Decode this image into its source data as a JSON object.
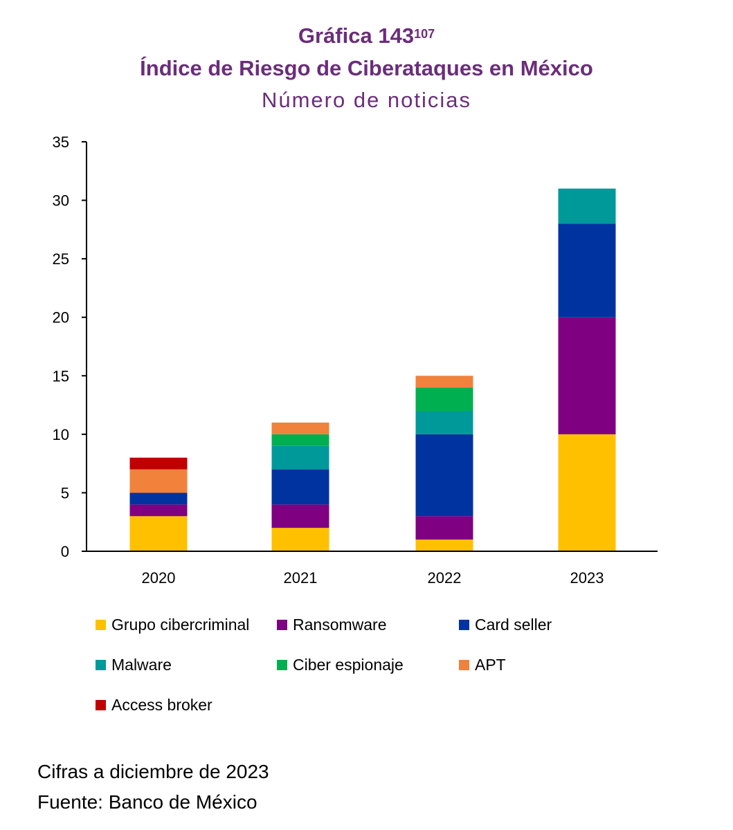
{
  "header": {
    "title_main": "Gráfica 143",
    "title_sup": "107",
    "title_line2": "Índice de Riesgo de Ciberataques en México",
    "subtitle": "Número de noticias"
  },
  "chart_data": {
    "type": "bar",
    "stacked": true,
    "title": "Índice de Riesgo de Ciberataques en México",
    "subtitle": "Número de noticias",
    "categories": [
      "2020",
      "2021",
      "2022",
      "2023"
    ],
    "y_ticks": [
      "0",
      "5",
      "10",
      "15",
      "20",
      "25",
      "30",
      "35"
    ],
    "ylim": [
      0,
      35
    ],
    "xlabel": "",
    "ylabel": "",
    "grid": false,
    "legend_position": "bottom",
    "series": [
      {
        "name": "Grupo cibercriminal",
        "color": "#ffc000",
        "values": [
          3,
          2,
          1,
          10
        ]
      },
      {
        "name": "Ransomware",
        "color": "#7f0080",
        "values": [
          1,
          2,
          2,
          10
        ]
      },
      {
        "name": "Card seller",
        "color": "#0033a0",
        "values": [
          1,
          3,
          7,
          8
        ]
      },
      {
        "name": "Malware",
        "color": "#00999a",
        "values": [
          0,
          2,
          2,
          3
        ]
      },
      {
        "name": "Ciber espionaje",
        "color": "#00b050",
        "values": [
          0,
          1,
          2,
          0
        ]
      },
      {
        "name": "APT",
        "color": "#f0823c",
        "values": [
          2,
          1,
          1,
          0
        ]
      },
      {
        "name": "Access broker",
        "color": "#c00000",
        "values": [
          1,
          0,
          0,
          0
        ]
      }
    ]
  },
  "footer": {
    "note": "Cifras a diciembre de 2023",
    "source": "Fuente: Banco de México"
  }
}
